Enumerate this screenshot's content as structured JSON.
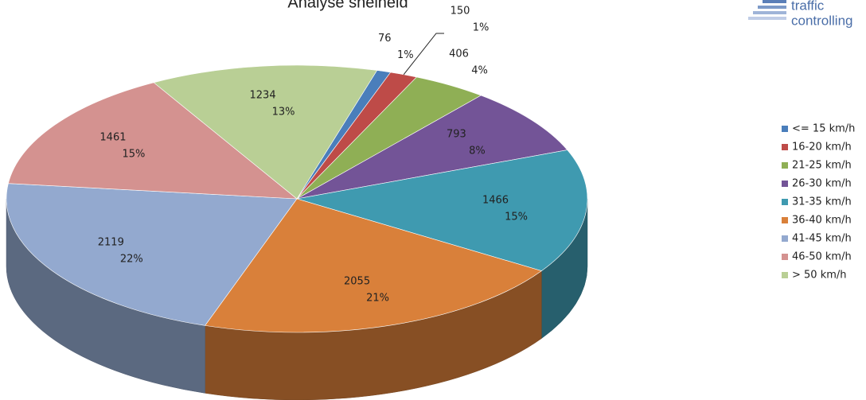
{
  "chart_data": {
    "type": "pie3d",
    "title": "Analyse snelheid",
    "categories": [
      "<= 15 km/h",
      "16-20 km/h",
      "21-25 km/h",
      "26-30 km/h",
      "31-35 km/h",
      "36-40 km/h",
      "41-45 km/h",
      "46-50 km/h",
      "> 50 km/h"
    ],
    "values": [
      76,
      150,
      406,
      793,
      1466,
      2055,
      2119,
      1461,
      1234
    ],
    "percent_labels": [
      "1%",
      "1%",
      "4%",
      "8%",
      "15%",
      "21%",
      "22%",
      "15%",
      "13%"
    ],
    "colors": [
      "#4a7ebb",
      "#be4b48",
      "#8faf55",
      "#735497",
      "#3f9ab0",
      "#d9803a",
      "#93a9cf",
      "#d49290",
      "#b9cf95"
    ],
    "legend": "right"
  },
  "logo": {
    "line1": "traffic",
    "line2": "controlling"
  }
}
